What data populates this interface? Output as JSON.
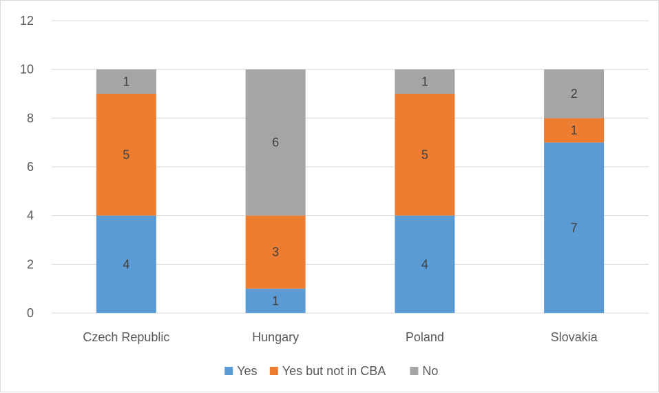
{
  "chart_data": {
    "type": "bar",
    "stacked": true,
    "categories": [
      "Czech Republic",
      "Hungary",
      "Poland",
      "Slovakia"
    ],
    "series": [
      {
        "name": "Yes",
        "values": [
          4,
          1,
          4,
          7
        ],
        "color": "#5b9bd5"
      },
      {
        "name": "Yes but not in CBA",
        "values": [
          5,
          3,
          5,
          1
        ],
        "color": "#ed7d31"
      },
      {
        "name": "No",
        "values": [
          1,
          6,
          1,
          2
        ],
        "color": "#a5a5a5"
      }
    ],
    "ylim": [
      0,
      12
    ],
    "yticks": [
      0,
      2,
      4,
      6,
      8,
      10,
      12
    ],
    "grid": true,
    "legend_position": "bottom",
    "title": "",
    "xlabel": "",
    "ylabel": ""
  }
}
